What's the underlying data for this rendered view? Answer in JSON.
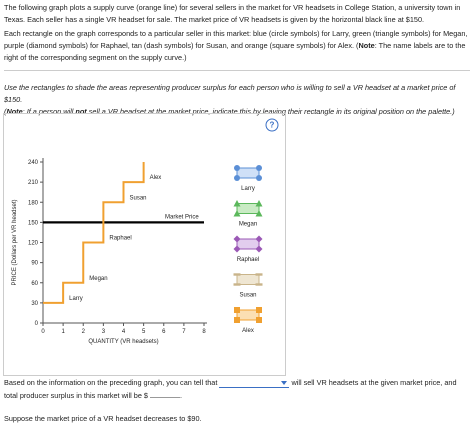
{
  "intro": {
    "paragraph1": "The following graph plots a supply curve (orange line) for several sellers in the market for VR headsets in College Station, a university town in Texas. Each seller has a single VR headset for sale. The market price of VR headsets is given by the horizontal black line at $150.",
    "paragraph2": [
      "Each rectangle on the graph corresponds to a particular seller in this market: blue (circle symbols) for Larry, green (triangle symbols) for Megan, purple (diamond symbols) for Raphael, tan (dash symbols) for Susan, and orange (square symbols) for Alex. (",
      "Note",
      ": The name labels are to the right of the corresponding segment on the supply curve.)"
    ]
  },
  "instructions": {
    "line1": "Use the rectangles to shade the areas representing producer surplus for each person who is willing to sell a VR headset at a market price of $150.",
    "line2": [
      "(",
      "Note",
      ": If a person will ",
      "not",
      " sell a VR headset at the market price, indicate this by leaving their rectangle in its original position on the palette.)"
    ]
  },
  "chart_data": {
    "type": "step",
    "x_label": "QUANTITY (VR headsets)",
    "y_label": "PRICE (Dollars per VR headset)",
    "xlim": [
      0,
      8
    ],
    "ylim": [
      0,
      240
    ],
    "xticks": [
      0,
      1,
      2,
      3,
      4,
      5,
      6,
      7,
      8
    ],
    "yticks": [
      0,
      30,
      60,
      90,
      120,
      150,
      180,
      210,
      240
    ],
    "series": [
      {
        "color": "#f0a030",
        "x": [
          0,
          1,
          1,
          2,
          2,
          3,
          3,
          4,
          4,
          5,
          5
        ],
        "values": [
          30,
          30,
          60,
          60,
          120,
          120,
          180,
          180,
          210,
          210,
          240
        ]
      }
    ],
    "segment_labels": [
      "Larry",
      "Megan",
      "Raphael",
      "Susan",
      "Alex"
    ],
    "market_price": {
      "label": "Market Price",
      "value": 150,
      "color": "#000000"
    }
  },
  "palette": {
    "items": [
      "Larry",
      "Megan",
      "Raphael",
      "Susan",
      "Alex"
    ]
  },
  "question": {
    "part1": "Based on the information on the preceding graph, you can tell that",
    "part2": "will sell VR headsets at the given market price, and total producer surplus in this market will be $",
    "part3": ".",
    "followup": "Suppose the market price of a VR headset decreases to $90."
  }
}
